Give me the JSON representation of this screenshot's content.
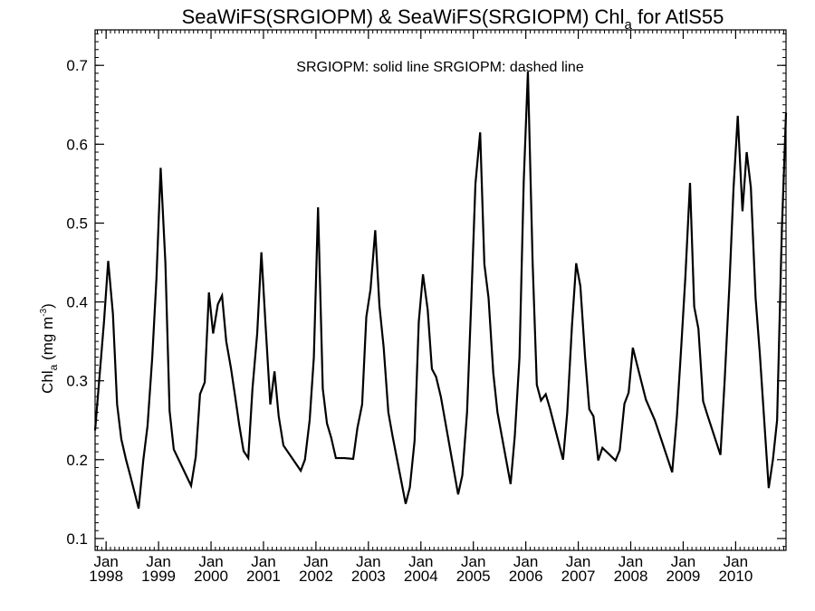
{
  "chart_data": {
    "type": "line",
    "title": "SeaWiFS(SRGIOPM) & SeaWiFS(SRGIOPM)  Chl",
    "title_subscript": "a",
    "title_suffix": " for AtlS55",
    "ylabel_main": "Chl",
    "ylabel_subscript": "a",
    "ylabel_units": " (mg m",
    "ylabel_exponent": "-3",
    "ylabel_close": ")",
    "legend_text": "SRGIOPM: solid line   SRGIOPM: dashed line",
    "x_month_label": "Jan",
    "x_years": [
      "1998",
      "1999",
      "2000",
      "2001",
      "2002",
      "2003",
      "2004",
      "2005",
      "2006",
      "2007",
      "2008",
      "2009",
      "2010"
    ],
    "xlim": [
      1997.79,
      2010.96
    ],
    "ylim": [
      0.085,
      0.745
    ],
    "y_ticks": [
      0.1,
      0.2,
      0.3,
      0.4,
      0.5,
      0.6,
      0.7
    ],
    "y_tick_labels": [
      "0.1",
      "0.2",
      "0.3",
      "0.4",
      "0.5",
      "0.6",
      "0.7"
    ],
    "grid": false,
    "series": [
      {
        "style": "solid",
        "color": "#000000",
        "points": [
          [
            1997.79,
            0.237
          ],
          [
            1997.88,
            0.31
          ],
          [
            1997.96,
            0.375
          ],
          [
            1998.04,
            0.452
          ],
          [
            1998.13,
            0.385
          ],
          [
            1998.21,
            0.27
          ],
          [
            1998.29,
            0.226
          ],
          [
            1998.38,
            0.2
          ],
          [
            1998.46,
            0.18
          ],
          [
            1998.62,
            0.138
          ],
          [
            1998.71,
            0.2
          ],
          [
            1998.79,
            0.243
          ],
          [
            1998.88,
            0.33
          ],
          [
            1998.96,
            0.43
          ],
          [
            1999.04,
            0.57
          ],
          [
            1999.13,
            0.45
          ],
          [
            1999.21,
            0.262
          ],
          [
            1999.29,
            0.213
          ],
          [
            1999.62,
            0.167
          ],
          [
            1999.71,
            0.204
          ],
          [
            1999.79,
            0.283
          ],
          [
            1999.88,
            0.298
          ],
          [
            1999.96,
            0.412
          ],
          [
            2000.04,
            0.36
          ],
          [
            2000.13,
            0.397
          ],
          [
            2000.21,
            0.408
          ],
          [
            2000.29,
            0.35
          ],
          [
            2000.38,
            0.316
          ],
          [
            2000.46,
            0.28
          ],
          [
            2000.54,
            0.243
          ],
          [
            2000.62,
            0.211
          ],
          [
            2000.71,
            0.202
          ],
          [
            2000.79,
            0.29
          ],
          [
            2000.88,
            0.36
          ],
          [
            2000.96,
            0.463
          ],
          [
            2001.04,
            0.37
          ],
          [
            2001.13,
            0.27
          ],
          [
            2001.21,
            0.312
          ],
          [
            2001.29,
            0.255
          ],
          [
            2001.38,
            0.218
          ],
          [
            2001.71,
            0.186
          ],
          [
            2001.79,
            0.2
          ],
          [
            2001.88,
            0.25
          ],
          [
            2001.96,
            0.33
          ],
          [
            2002.04,
            0.52
          ],
          [
            2002.13,
            0.29
          ],
          [
            2002.21,
            0.246
          ],
          [
            2002.29,
            0.228
          ],
          [
            2002.38,
            0.202
          ],
          [
            2002.54,
            0.202
          ],
          [
            2002.71,
            0.201
          ],
          [
            2002.79,
            0.24
          ],
          [
            2002.88,
            0.27
          ],
          [
            2002.96,
            0.381
          ],
          [
            2003.04,
            0.416
          ],
          [
            2003.13,
            0.491
          ],
          [
            2003.21,
            0.395
          ],
          [
            2003.29,
            0.343
          ],
          [
            2003.38,
            0.26
          ],
          [
            2003.46,
            0.23
          ],
          [
            2003.71,
            0.144
          ],
          [
            2003.79,
            0.165
          ],
          [
            2003.88,
            0.224
          ],
          [
            2003.96,
            0.375
          ],
          [
            2004.04,
            0.435
          ],
          [
            2004.13,
            0.39
          ],
          [
            2004.21,
            0.315
          ],
          [
            2004.29,
            0.305
          ],
          [
            2004.38,
            0.28
          ],
          [
            2004.71,
            0.156
          ],
          [
            2004.79,
            0.18
          ],
          [
            2004.88,
            0.26
          ],
          [
            2004.96,
            0.4
          ],
          [
            2005.04,
            0.55
          ],
          [
            2005.13,
            0.615
          ],
          [
            2005.21,
            0.448
          ],
          [
            2005.29,
            0.405
          ],
          [
            2005.38,
            0.31
          ],
          [
            2005.46,
            0.26
          ],
          [
            2005.71,
            0.169
          ],
          [
            2005.79,
            0.23
          ],
          [
            2005.88,
            0.33
          ],
          [
            2005.96,
            0.552
          ],
          [
            2006.04,
            0.692
          ],
          [
            2006.13,
            0.45
          ],
          [
            2006.21,
            0.295
          ],
          [
            2006.29,
            0.275
          ],
          [
            2006.38,
            0.283
          ],
          [
            2006.46,
            0.265
          ],
          [
            2006.71,
            0.2
          ],
          [
            2006.79,
            0.26
          ],
          [
            2006.88,
            0.37
          ],
          [
            2006.96,
            0.449
          ],
          [
            2007.04,
            0.42
          ],
          [
            2007.13,
            0.33
          ],
          [
            2007.21,
            0.264
          ],
          [
            2007.29,
            0.255
          ],
          [
            2007.38,
            0.199
          ],
          [
            2007.46,
            0.215
          ],
          [
            2007.71,
            0.199
          ],
          [
            2007.79,
            0.212
          ],
          [
            2007.88,
            0.271
          ],
          [
            2007.96,
            0.285
          ],
          [
            2008.04,
            0.342
          ],
          [
            2008.13,
            0.318
          ],
          [
            2008.29,
            0.276
          ],
          [
            2008.46,
            0.25
          ],
          [
            2008.79,
            0.184
          ],
          [
            2008.88,
            0.255
          ],
          [
            2008.96,
            0.34
          ],
          [
            2009.04,
            0.43
          ],
          [
            2009.13,
            0.551
          ],
          [
            2009.21,
            0.394
          ],
          [
            2009.29,
            0.366
          ],
          [
            2009.38,
            0.274
          ],
          [
            2009.46,
            0.257
          ],
          [
            2009.71,
            0.206
          ],
          [
            2009.79,
            0.3
          ],
          [
            2009.88,
            0.42
          ],
          [
            2009.96,
            0.545
          ],
          [
            2010.04,
            0.636
          ],
          [
            2010.13,
            0.515
          ],
          [
            2010.21,
            0.59
          ],
          [
            2010.29,
            0.545
          ],
          [
            2010.38,
            0.405
          ],
          [
            2010.46,
            0.335
          ],
          [
            2010.63,
            0.164
          ],
          [
            2010.71,
            0.2
          ],
          [
            2010.79,
            0.25
          ],
          [
            2010.88,
            0.49
          ],
          [
            2010.96,
            0.64
          ]
        ]
      }
    ]
  }
}
